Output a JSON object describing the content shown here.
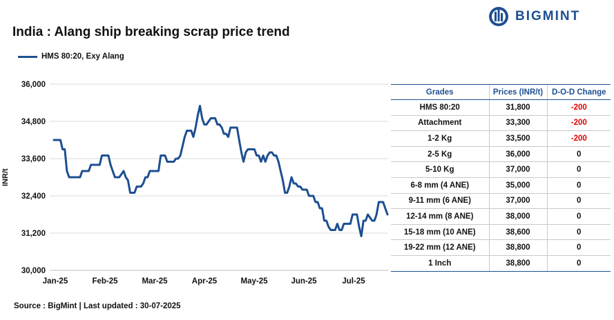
{
  "title": "India : Alang ship breaking scrap price trend",
  "brand": {
    "name": "BIGMINT",
    "color": "#1d4f91",
    "icon": "bigmint-logo-icon"
  },
  "source": "Source : BigMint | Last updated : 30-07-2025",
  "table": {
    "headers": [
      "Grades",
      "Prices (INR/t)",
      "D-O-D Change"
    ],
    "rows": [
      [
        "HMS 80:20",
        "31,800",
        "-200"
      ],
      [
        "Attachment",
        "33,300",
        "-200"
      ],
      [
        "1-2 Kg",
        "33,500",
        "-200"
      ],
      [
        "2-5 Kg",
        "36,000",
        "0"
      ],
      [
        "5-10 Kg",
        "37,000",
        "0"
      ],
      [
        "6-8 mm (4 ANE)",
        "35,000",
        "0"
      ],
      [
        "9-11 mm (6 ANE)",
        "37,000",
        "0"
      ],
      [
        "12-14 mm (8 ANE)",
        "38,000",
        "0"
      ],
      [
        "15-18 mm (10 ANE)",
        "38,600",
        "0"
      ],
      [
        "19-22 mm (12 ANE)",
        "38,800",
        "0"
      ],
      [
        "1 Inch",
        "38,800",
        "0"
      ]
    ],
    "negative_color": "#e00000"
  },
  "chart_data": {
    "type": "line",
    "title": "India : Alang ship breaking scrap price trend",
    "xlabel": "",
    "ylabel": "INR/t",
    "ylim": [
      30000,
      36000
    ],
    "yticks": [
      30000,
      31200,
      32400,
      33600,
      34800,
      36000
    ],
    "ytick_labels": [
      "30,000",
      "31,200",
      "32,400",
      "33,600",
      "34,800",
      "36,000"
    ],
    "xtick_labels": [
      "Jan-25",
      "Feb-25",
      "Mar-25",
      "Apr-25",
      "May-25",
      "Jun-25",
      "Jul-25"
    ],
    "legend": "top-left",
    "grid": "horizontal",
    "series": [
      {
        "name": "HMS 80:20, Exy Alang",
        "color": "#1d4f91",
        "values": [
          34200,
          34200,
          34200,
          34200,
          33900,
          33900,
          33200,
          33000,
          33000,
          33000,
          33000,
          33000,
          33000,
          33200,
          33200,
          33200,
          33200,
          33400,
          33400,
          33400,
          33400,
          33400,
          33700,
          33700,
          33700,
          33700,
          33400,
          33200,
          33000,
          33000,
          33000,
          33100,
          33200,
          33000,
          32900,
          32500,
          32500,
          32500,
          32700,
          32700,
          32700,
          32800,
          33000,
          33000,
          33200,
          33200,
          33200,
          33200,
          33200,
          33700,
          33700,
          33700,
          33500,
          33500,
          33500,
          33500,
          33600,
          33600,
          33700,
          34000,
          34300,
          34500,
          34500,
          34500,
          34300,
          34600,
          35000,
          35300,
          34900,
          34700,
          34700,
          34800,
          34900,
          34900,
          34900,
          34700,
          34700,
          34600,
          34400,
          34400,
          34300,
          34600,
          34600,
          34600,
          34600,
          34200,
          33800,
          33500,
          33800,
          33900,
          33900,
          33900,
          33900,
          33700,
          33700,
          33500,
          33700,
          33500,
          33700,
          33800,
          33800,
          33700,
          33700,
          33500,
          33200,
          32900,
          32500,
          32500,
          32700,
          33000,
          32800,
          32800,
          32700,
          32700,
          32600,
          32600,
          32600,
          32400,
          32400,
          32400,
          32200,
          32200,
          32000,
          32000,
          31600,
          31600,
          31400,
          31300,
          31300,
          31300,
          31500,
          31300,
          31300,
          31500,
          31500,
          31500,
          31500,
          31800,
          31800,
          31800,
          31400,
          31100,
          31600,
          31600,
          31800,
          31700,
          31600,
          31600,
          31800,
          32200,
          32200,
          32200,
          32000,
          31800
        ]
      }
    ]
  }
}
